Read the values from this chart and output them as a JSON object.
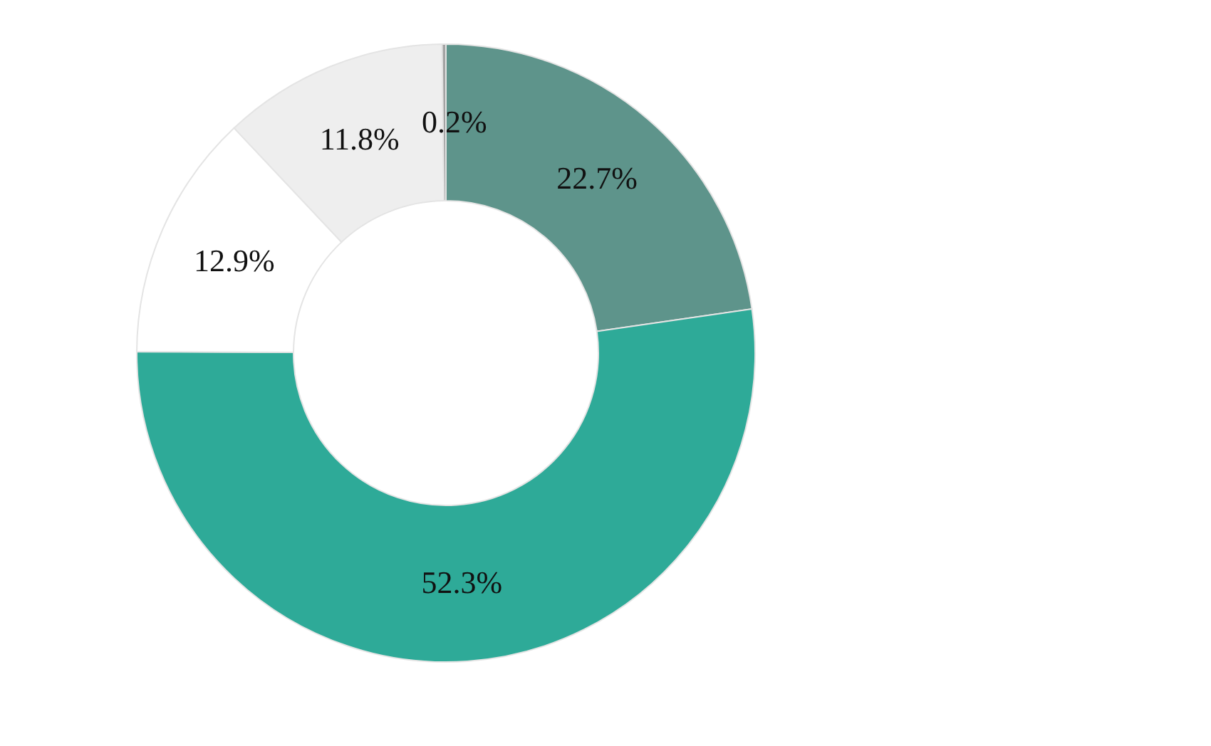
{
  "chart_data": {
    "type": "donut",
    "categories": [
      null,
      null,
      null,
      null,
      null
    ],
    "values": [
      22.7,
      52.3,
      12.9,
      11.8,
      0.2
    ],
    "colors": [
      "#5e948b",
      "#2eaa98",
      "#ffffff",
      "#eeeeee",
      "#a3a3a3"
    ],
    "value_labels": [
      "22.7%",
      "52.3%",
      "12.9%",
      "11.8%",
      "0.2%"
    ]
  }
}
